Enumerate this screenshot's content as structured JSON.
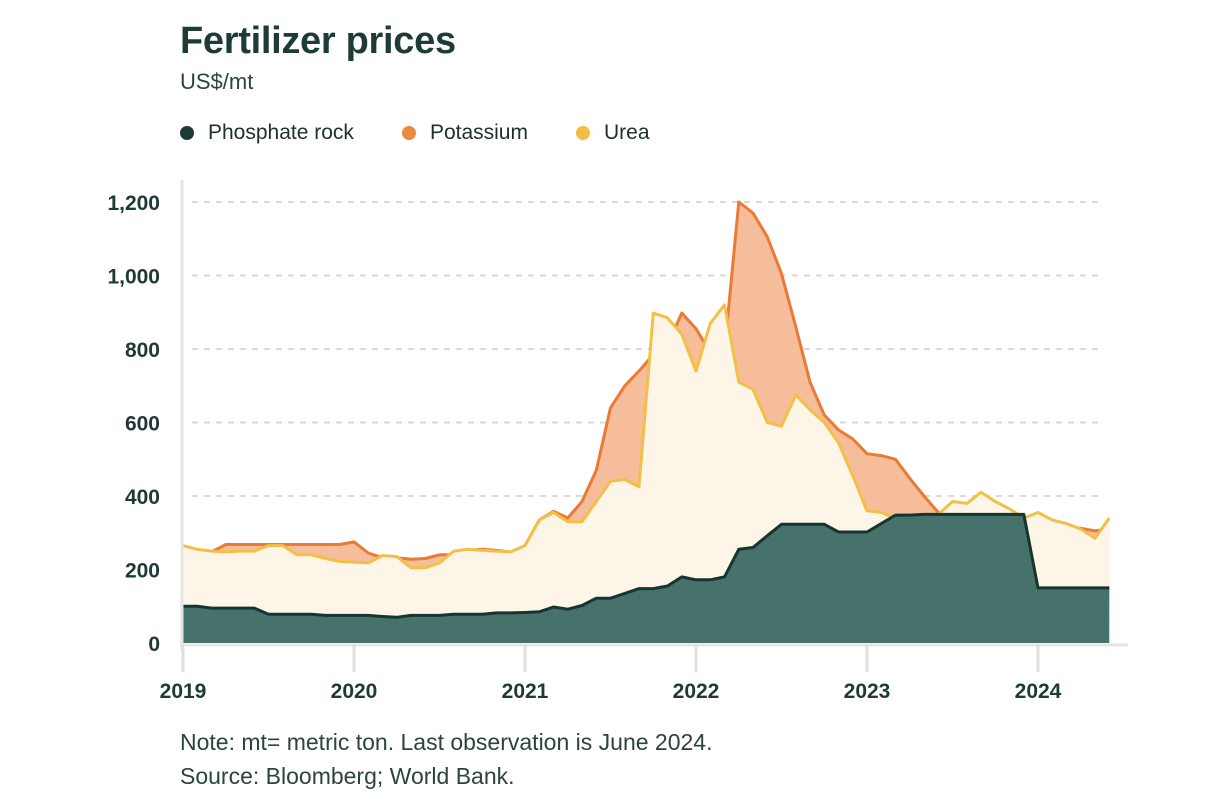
{
  "header": {
    "title": "Fertilizer prices",
    "subtitle": "US$/mt"
  },
  "legend": [
    {
      "label": "Phosphate rock",
      "color": "#1c3b36"
    },
    {
      "label": "Potassium",
      "color": "#ec8a3c"
    },
    {
      "label": "Urea",
      "color": "#f1bd43"
    }
  ],
  "notes": {
    "note": "Note: mt= metric ton. Last observation is June 2024.",
    "source": "Source: Bloomberg; World Bank."
  },
  "colors": {
    "phosphate_fill": "#46726b",
    "phosphate_line": "#163430",
    "potassium_fill": "#f6bd9b",
    "potassium_line": "#ea7a35",
    "urea_fill": "#fdf5e8",
    "urea_line": "#f3c047",
    "grid": "#dadada",
    "axis": "#e4e4e4"
  },
  "chart_data": {
    "type": "area",
    "x_start": "2019-01",
    "x_end": "2024-06",
    "frequency": "monthly",
    "xticks": [
      "2019",
      "2020",
      "2021",
      "2022",
      "2023",
      "2024"
    ],
    "yticks": [
      "0",
      "200",
      "400",
      "600",
      "800",
      "1,000",
      "1,200"
    ],
    "ytick_values": [
      0,
      200,
      400,
      600,
      800,
      1000,
      1200
    ],
    "ylim": [
      0,
      1200
    ],
    "grid": true,
    "legend_position": "top-left",
    "series": [
      {
        "name": "Phosphate rock",
        "values": [
          100,
          100,
          95,
          95,
          95,
          95,
          78,
          78,
          78,
          78,
          75,
          75,
          75,
          75,
          72,
          70,
          75,
          75,
          75,
          78,
          78,
          78,
          82,
          82,
          83,
          85,
          98,
          92,
          102,
          122,
          122,
          135,
          148,
          148,
          155,
          180,
          172,
          172,
          180,
          255,
          260,
          292,
          323,
          323,
          323,
          323,
          302,
          302,
          302,
          325,
          348,
          348,
          350,
          350,
          350,
          350,
          350,
          350,
          350,
          350,
          150,
          150,
          150,
          150,
          150,
          150
        ]
      },
      {
        "name": "Potassium",
        "values": [
          218,
          255,
          248,
          268,
          268,
          268,
          268,
          268,
          268,
          268,
          268,
          268,
          275,
          245,
          232,
          232,
          228,
          230,
          240,
          240,
          252,
          255,
          252,
          248,
          265,
          335,
          358,
          340,
          385,
          470,
          640,
          700,
          740,
          785,
          810,
          898,
          855,
          790,
          795,
          1200,
          1170,
          1105,
          1005,
          860,
          710,
          620,
          580,
          555,
          515,
          510,
          500,
          448,
          400,
          355,
          340,
          325,
          318,
          312,
          312,
          312,
          312,
          312,
          312,
          312,
          305,
          310
        ]
      },
      {
        "name": "Urea",
        "values": [
          265,
          255,
          250,
          248,
          250,
          250,
          265,
          265,
          240,
          240,
          230,
          222,
          220,
          218,
          238,
          235,
          205,
          205,
          218,
          250,
          255,
          252,
          250,
          248,
          265,
          335,
          355,
          330,
          330,
          385,
          440,
          445,
          425,
          898,
          885,
          840,
          740,
          870,
          920,
          710,
          690,
          600,
          590,
          675,
          635,
          600,
          545,
          455,
          360,
          355,
          340,
          330,
          335,
          350,
          385,
          380,
          410,
          385,
          365,
          340,
          355,
          335,
          325,
          310,
          285,
          340
        ]
      }
    ]
  }
}
